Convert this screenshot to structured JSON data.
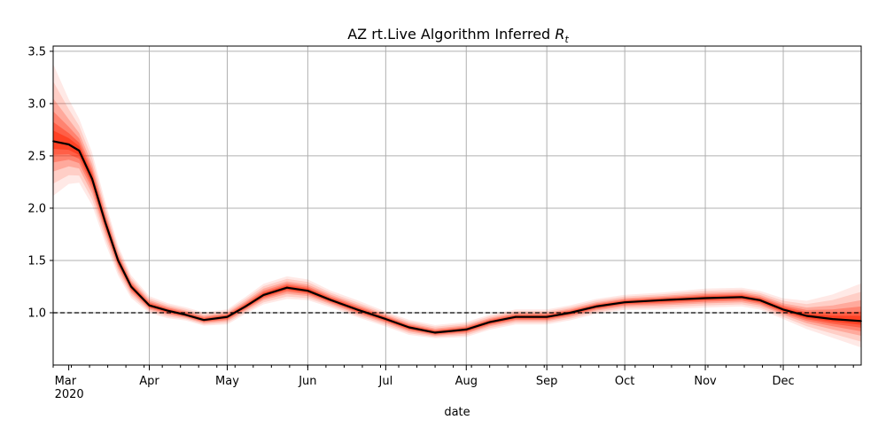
{
  "chart_data": {
    "type": "line",
    "title": "AZ rt.Live Algorithm Inferred",
    "title_symbol": "R",
    "title_subscript": "t",
    "xlabel": "date",
    "ylabel": "",
    "x_start": "2020-02-24",
    "x_end": "2020-12-31",
    "ylim": [
      0.5,
      3.55
    ],
    "y_ticks": [
      1.0,
      1.5,
      2.0,
      2.5,
      3.0,
      3.5
    ],
    "y_tick_labels": [
      "1.0",
      "1.5",
      "2.0",
      "2.5",
      "3.0",
      "3.5"
    ],
    "x_ticks": [
      {
        "date": "2020-03-01",
        "label": "Mar",
        "sublabel": "2020"
      },
      {
        "date": "2020-04-01",
        "label": "Apr"
      },
      {
        "date": "2020-05-01",
        "label": "May"
      },
      {
        "date": "2020-06-01",
        "label": "Jun"
      },
      {
        "date": "2020-07-01",
        "label": "Jul"
      },
      {
        "date": "2020-08-01",
        "label": "Aug"
      },
      {
        "date": "2020-09-01",
        "label": "Sep"
      },
      {
        "date": "2020-10-01",
        "label": "Oct"
      },
      {
        "date": "2020-11-01",
        "label": "Nov"
      },
      {
        "date": "2020-12-01",
        "label": "Dec"
      }
    ],
    "reference_line": {
      "y": 1.0,
      "style": "dashed",
      "color": "#000000"
    },
    "grid": true,
    "colors": {
      "median": "#000000",
      "band": "#ff2a0a",
      "grid": "#b0b0b0"
    },
    "series": [
      {
        "values": [
          {
            "x": "2020-02-24",
            "y": 2.64,
            "lo": 2.35,
            "hi": 3.05
          },
          {
            "x": "2020-03-01",
            "y": 2.61,
            "lo": 2.4,
            "hi": 2.85
          },
          {
            "x": "2020-03-05",
            "y": 2.55,
            "lo": 2.38,
            "hi": 2.72
          },
          {
            "x": "2020-03-10",
            "y": 2.28,
            "lo": 2.14,
            "hi": 2.42
          },
          {
            "x": "2020-03-15",
            "y": 1.87,
            "lo": 1.76,
            "hi": 1.98
          },
          {
            "x": "2020-03-20",
            "y": 1.5,
            "lo": 1.42,
            "hi": 1.58
          },
          {
            "x": "2020-03-25",
            "y": 1.25,
            "lo": 1.19,
            "hi": 1.31
          },
          {
            "x": "2020-04-01",
            "y": 1.07,
            "lo": 1.03,
            "hi": 1.12
          },
          {
            "x": "2020-04-08",
            "y": 1.02,
            "lo": 0.98,
            "hi": 1.06
          },
          {
            "x": "2020-04-15",
            "y": 0.98,
            "lo": 0.95,
            "hi": 1.02
          },
          {
            "x": "2020-04-22",
            "y": 0.93,
            "lo": 0.9,
            "hi": 0.97
          },
          {
            "x": "2020-05-01",
            "y": 0.96,
            "lo": 0.92,
            "hi": 1.0
          },
          {
            "x": "2020-05-08",
            "y": 1.06,
            "lo": 1.02,
            "hi": 1.11
          },
          {
            "x": "2020-05-15",
            "y": 1.17,
            "lo": 1.12,
            "hi": 1.23
          },
          {
            "x": "2020-05-24",
            "y": 1.24,
            "lo": 1.18,
            "hi": 1.3
          },
          {
            "x": "2020-06-01",
            "y": 1.21,
            "lo": 1.16,
            "hi": 1.27
          },
          {
            "x": "2020-06-10",
            "y": 1.12,
            "lo": 1.08,
            "hi": 1.17
          },
          {
            "x": "2020-06-20",
            "y": 1.03,
            "lo": 0.99,
            "hi": 1.08
          },
          {
            "x": "2020-07-01",
            "y": 0.94,
            "lo": 0.9,
            "hi": 0.98
          },
          {
            "x": "2020-07-10",
            "y": 0.86,
            "lo": 0.82,
            "hi": 0.9
          },
          {
            "x": "2020-07-20",
            "y": 0.81,
            "lo": 0.78,
            "hi": 0.85
          },
          {
            "x": "2020-08-01",
            "y": 0.84,
            "lo": 0.8,
            "hi": 0.88
          },
          {
            "x": "2020-08-10",
            "y": 0.91,
            "lo": 0.87,
            "hi": 0.95
          },
          {
            "x": "2020-08-20",
            "y": 0.96,
            "lo": 0.92,
            "hi": 1.0
          },
          {
            "x": "2020-09-01",
            "y": 0.96,
            "lo": 0.92,
            "hi": 1.0
          },
          {
            "x": "2020-09-10",
            "y": 1.0,
            "lo": 0.96,
            "hi": 1.04
          },
          {
            "x": "2020-09-20",
            "y": 1.06,
            "lo": 1.02,
            "hi": 1.1
          },
          {
            "x": "2020-10-01",
            "y": 1.1,
            "lo": 1.06,
            "hi": 1.14
          },
          {
            "x": "2020-10-15",
            "y": 1.12,
            "lo": 1.07,
            "hi": 1.16
          },
          {
            "x": "2020-11-01",
            "y": 1.14,
            "lo": 1.09,
            "hi": 1.19
          },
          {
            "x": "2020-11-15",
            "y": 1.15,
            "lo": 1.1,
            "hi": 1.2
          },
          {
            "x": "2020-11-22",
            "y": 1.12,
            "lo": 1.07,
            "hi": 1.17
          },
          {
            "x": "2020-12-01",
            "y": 1.03,
            "lo": 0.98,
            "hi": 1.09
          },
          {
            "x": "2020-12-10",
            "y": 0.97,
            "lo": 0.9,
            "hi": 1.05
          },
          {
            "x": "2020-12-20",
            "y": 0.94,
            "lo": 0.84,
            "hi": 1.07
          },
          {
            "x": "2020-12-31",
            "y": 0.92,
            "lo": 0.78,
            "hi": 1.12
          }
        ]
      }
    ]
  }
}
